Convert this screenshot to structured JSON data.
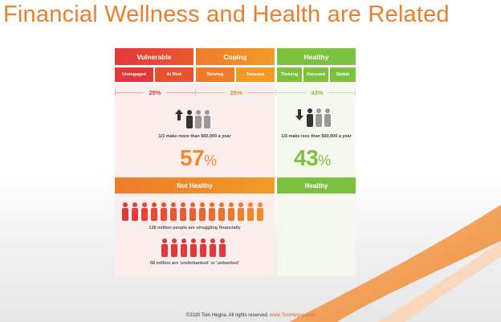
{
  "title": "Financial Wellness and Health are Related",
  "categories": [
    {
      "label": "Vulnerable",
      "color": "#e5373a"
    },
    {
      "label": "Coping",
      "color": "#f08a2a"
    },
    {
      "label": "Healthy",
      "color": "#7dc23e"
    }
  ],
  "subcategories": [
    {
      "label": "Unengaged"
    },
    {
      "label": "At Risk"
    },
    {
      "label": "Striving"
    },
    {
      "label": "Tenuous"
    },
    {
      "label": "Thriving"
    },
    {
      "label": "Focused"
    },
    {
      "label": "Stable"
    }
  ],
  "percentages": {
    "vulnerable": "29%",
    "coping": "28%",
    "healthy": "43%"
  },
  "left_panel": {
    "caption": "1/3 make more than $60,000 a year",
    "big_number": "57",
    "big_unit": "%",
    "band_label": "Not Healthy",
    "struggling_caption": "138 million people are struggling financially",
    "underbanked_caption": "68 million are 'underbanked' or 'unbanked'"
  },
  "right_panel": {
    "caption": "1/3 make less than $60,000 a year",
    "big_number": "43",
    "big_unit": "%",
    "band_label": "Healthy"
  },
  "icons": {
    "up_arrow": "arrow-up-icon",
    "down_arrow": "arrow-down-icon",
    "person": "person-icon"
  },
  "copyright": {
    "text": "©2020 Tom Hegna. All rights reserved.",
    "url": "www.TomHegna.com"
  }
}
